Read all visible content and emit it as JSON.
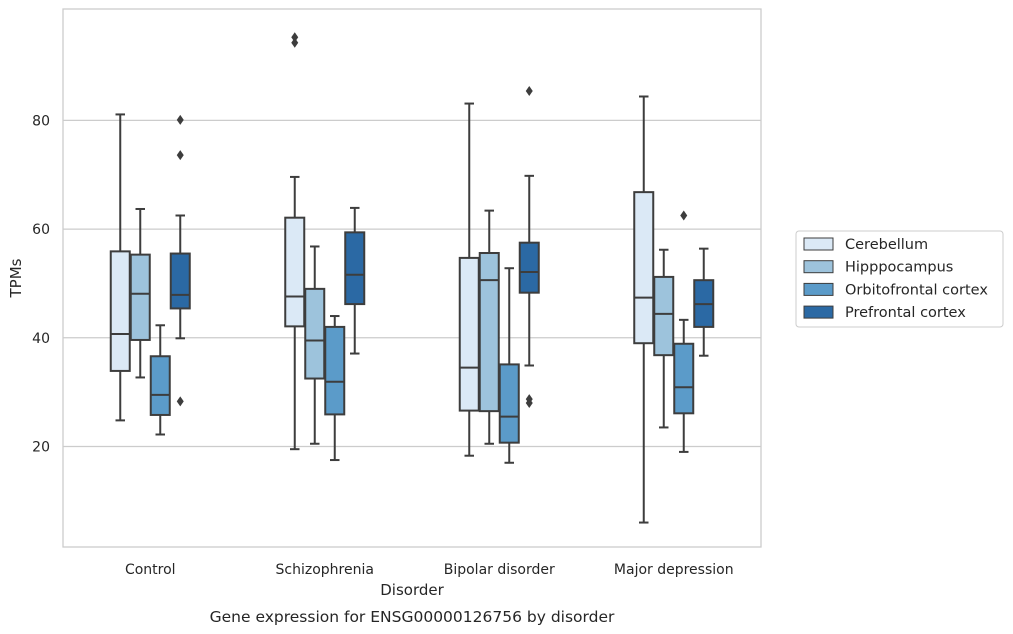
{
  "chart_data": {
    "type": "box",
    "title": "",
    "caption": "Gene expression for ENSG00000126756 by disorder",
    "xlabel": "Disorder",
    "ylabel": "TPMs",
    "ylim": [
      1.5,
      100.5
    ],
    "yticks": [
      20,
      40,
      60,
      80
    ],
    "grid": "horizontal",
    "legend_position": "right",
    "categories": [
      "Control",
      "Schizophrenia",
      "Bipolar disorder",
      "Major depression"
    ],
    "series": [
      {
        "name": "Cerebellum",
        "color": "#dbe9f6",
        "boxes": [
          {
            "whislo": 24.8,
            "q1": 33.9,
            "med": 40.7,
            "q3": 55.9,
            "whishi": 81.1,
            "fliers": []
          },
          {
            "whislo": 19.5,
            "q1": 42.1,
            "med": 47.6,
            "q3": 62.1,
            "whishi": 69.6,
            "fliers": [
              94.3,
              95.3
            ]
          },
          {
            "whislo": 18.3,
            "q1": 26.6,
            "med": 34.5,
            "q3": 54.7,
            "whishi": 83.1,
            "fliers": []
          },
          {
            "whislo": 6.0,
            "q1": 39.0,
            "med": 47.4,
            "q3": 66.8,
            "whishi": 84.4,
            "fliers": []
          }
        ]
      },
      {
        "name": "Hipppocampus",
        "color": "#9dc3dc",
        "boxes": [
          {
            "whislo": 32.7,
            "q1": 39.6,
            "med": 48.1,
            "q3": 55.3,
            "whishi": 63.7,
            "fliers": []
          },
          {
            "whislo": 20.5,
            "q1": 32.5,
            "med": 39.5,
            "q3": 49.0,
            "whishi": 56.8,
            "fliers": []
          },
          {
            "whislo": 20.5,
            "q1": 26.5,
            "med": 50.6,
            "q3": 55.6,
            "whishi": 63.4,
            "fliers": []
          },
          {
            "whislo": 23.5,
            "q1": 36.8,
            "med": 44.4,
            "q3": 51.2,
            "whishi": 56.2,
            "fliers": []
          }
        ]
      },
      {
        "name": "Orbitofrontal cortex",
        "color": "#5b9bc9",
        "boxes": [
          {
            "whislo": 22.2,
            "q1": 25.8,
            "med": 29.5,
            "q3": 36.6,
            "whishi": 42.3,
            "fliers": []
          },
          {
            "whislo": 17.5,
            "q1": 25.9,
            "med": 31.9,
            "q3": 42.0,
            "whishi": 44.0,
            "fliers": []
          },
          {
            "whislo": 17.0,
            "q1": 20.7,
            "med": 25.5,
            "q3": 35.1,
            "whishi": 52.8,
            "fliers": []
          },
          {
            "whislo": 19.0,
            "q1": 26.1,
            "med": 30.9,
            "q3": 38.9,
            "whishi": 43.3,
            "fliers": [
              62.5
            ]
          }
        ]
      },
      {
        "name": "Prefrontal cortex",
        "color": "#2b69a4",
        "boxes": [
          {
            "whislo": 39.9,
            "q1": 45.4,
            "med": 47.9,
            "q3": 55.5,
            "whishi": 62.5,
            "fliers": [
              28.3,
              73.6,
              80.1
            ]
          },
          {
            "whislo": 37.1,
            "q1": 46.2,
            "med": 51.6,
            "q3": 59.4,
            "whishi": 63.9,
            "fliers": []
          },
          {
            "whislo": 34.9,
            "q1": 48.3,
            "med": 52.1,
            "q3": 57.5,
            "whishi": 69.8,
            "fliers": [
              28.0,
              28.7,
              85.4
            ]
          },
          {
            "whislo": 36.7,
            "q1": 42.0,
            "med": 46.2,
            "q3": 50.6,
            "whishi": 56.4,
            "fliers": []
          }
        ]
      }
    ]
  }
}
